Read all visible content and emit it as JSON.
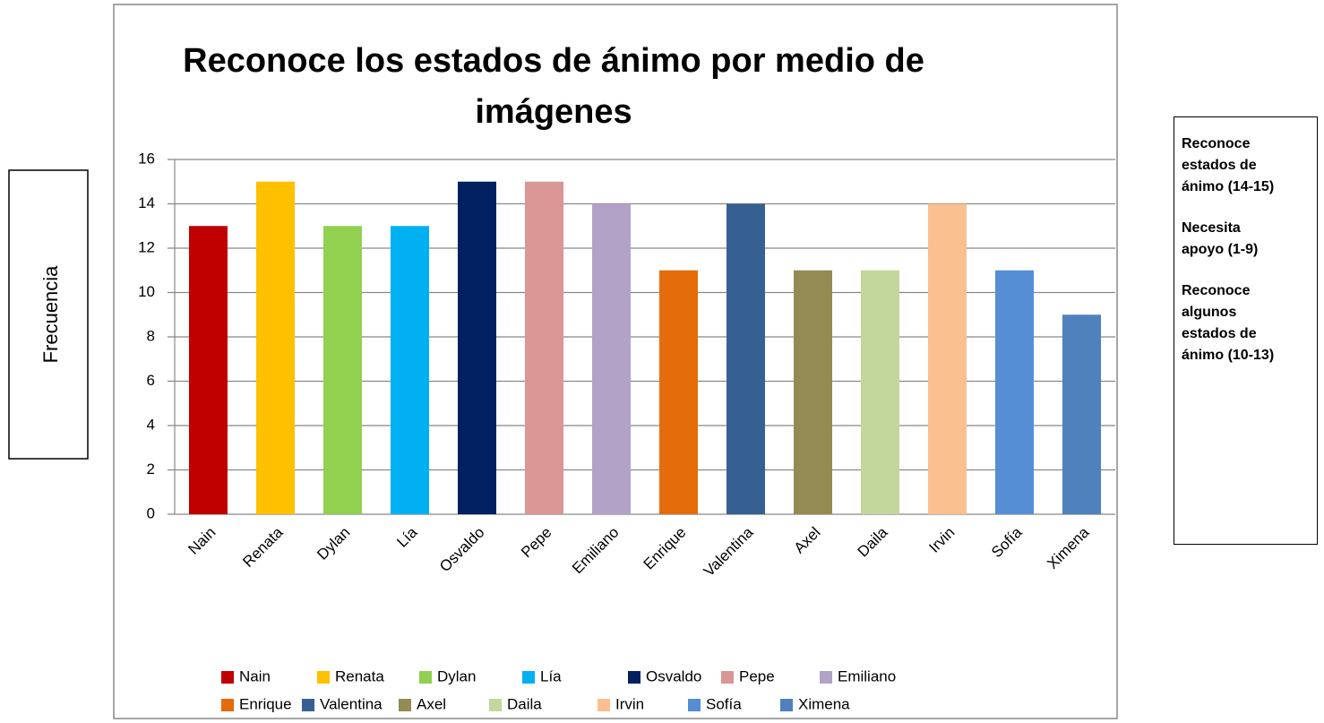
{
  "chart_data": {
    "type": "bar",
    "title": "Reconoce los estados de ánimo por medio de imágenes",
    "y_label": "Frecuencia",
    "categories": [
      "Nain",
      "Renata",
      "Dylan",
      "Lía",
      "Osvaldo",
      "Pepe",
      "Emiliano",
      "Enrique",
      "Valentina",
      "Axel",
      "Daila",
      "Irvin",
      "Sofía",
      "Ximena"
    ],
    "values": [
      13,
      15,
      13,
      13,
      15,
      15,
      14,
      11,
      14,
      11,
      11,
      14,
      11,
      9
    ],
    "colors": [
      "#c00000",
      "#ffc000",
      "#92d050",
      "#00b0f0",
      "#002060",
      "#d99694",
      "#b3a2c7",
      "#e46c0a",
      "#376092",
      "#948a54",
      "#c3d69b",
      "#fac090",
      "#558ed5",
      "#4f81bd"
    ],
    "ylim": [
      0,
      16
    ],
    "yticks": [
      0,
      2,
      4,
      6,
      8,
      10,
      12,
      14,
      16
    ],
    "grid": true,
    "legend": "bottom",
    "notes": [
      "Reconoce estados de ánimo (14-15)",
      "Necesita apoyo (1-9)",
      "Reconoce algunos estados de ánimo (10-13)"
    ]
  }
}
